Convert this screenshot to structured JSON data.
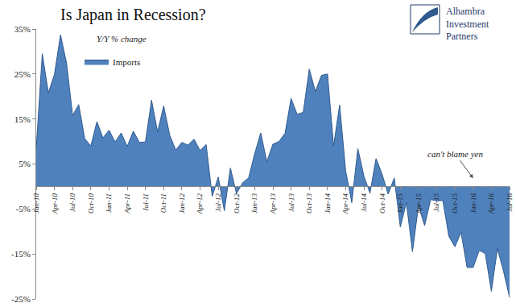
{
  "chart_data": {
    "type": "area",
    "title": "Is Japan in Recession?",
    "subtitle": "Y/Y % change",
    "logo": "Alhambra Investment Partners",
    "annotations": [
      {
        "text": "can't blame yen",
        "x": "Jan-16"
      }
    ],
    "legend": "top left",
    "grid": false,
    "categories": [
      "Jan-10",
      null,
      null,
      "Apr-10",
      null,
      null,
      "Jul-10",
      null,
      null,
      "Oct-10",
      null,
      null,
      "Jan-11",
      null,
      null,
      "Apr-11",
      null,
      null,
      "Jul-11",
      null,
      null,
      "Oct-11",
      null,
      null,
      "Jan-12",
      null,
      null,
      "Apr-12",
      null,
      null,
      "Jul-12",
      null,
      null,
      "Oct-12",
      null,
      null,
      "Jan-13",
      null,
      null,
      "Apr-13",
      null,
      null,
      "Jul-13",
      null,
      null,
      "Oct-13",
      null,
      null,
      "Jan-14",
      null,
      null,
      "Apr-14",
      null,
      null,
      "Jul-14",
      null,
      null,
      "Oct-14",
      null,
      null,
      "Jan-15",
      null,
      null,
      "Apr-15",
      null,
      null,
      "Jul-15",
      null,
      null,
      "Oct-15",
      null,
      null,
      "Jan-16",
      null,
      null,
      "Apr-16",
      null,
      null,
      "Jul-16"
    ],
    "series": [
      {
        "name": "Imports",
        "color": "#4f81bd",
        "values": [
          8.4,
          29.5,
          20.8,
          24.9,
          33.7,
          27.4,
          15.8,
          18.2,
          10.6,
          9.0,
          14.4,
          10.8,
          12.5,
          9.9,
          11.9,
          8.9,
          12.3,
          9.8,
          9.9,
          19.2,
          12.1,
          17.9,
          11.4,
          8.1,
          9.8,
          9.2,
          10.5,
          8.0,
          9.3,
          -2.2,
          2.1,
          -5.4,
          4.1,
          -1.6,
          0.8,
          1.9,
          7.3,
          11.9,
          5.5,
          9.4,
          10.0,
          11.8,
          19.6,
          16.0,
          16.5,
          26.1,
          21.1,
          24.7,
          25.0,
          9.0,
          18.1,
          3.4,
          -3.6,
          8.4,
          2.3,
          -1.5,
          6.2,
          2.7,
          -1.7,
          1.9,
          -9.0,
          -3.6,
          -14.5,
          -4.2,
          -8.7,
          -2.9,
          -3.2,
          -3.1,
          -11.1,
          -13.4,
          -10.2,
          -18.0,
          -18.0,
          -14.2,
          -14.9,
          -23.3,
          -13.8,
          -18.8,
          -24.7
        ]
      }
    ],
    "ylim": [
      -25,
      35
    ],
    "yticks": [
      {
        "value": -25,
        "label": "-25%"
      },
      {
        "value": -15,
        "label": "-15%"
      },
      {
        "value": -5,
        "label": "-5%"
      },
      {
        "value": 5,
        "label": "5%"
      },
      {
        "value": 15,
        "label": "15%"
      },
      {
        "value": 25,
        "label": "25%"
      },
      {
        "value": 35,
        "label": "35%"
      }
    ]
  }
}
